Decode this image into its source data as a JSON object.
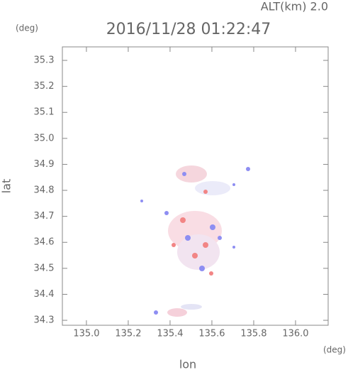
{
  "chart_data": {
    "type": "map",
    "title": "2016/11/28 01:22:47",
    "subtitle": "ALT(km) 2.0",
    "x_label": "lon",
    "y_label": "lat",
    "x_unit": "(deg)",
    "y_unit": "(deg)",
    "xlim": [
      134.885,
      136.156
    ],
    "ylim": [
      34.281,
      35.352
    ],
    "xticks": [
      {
        "value": 135,
        "label": "135.0"
      },
      135.2,
      135.4,
      135.6,
      135.8,
      {
        "value": 136,
        "label": "136.0"
      }
    ],
    "yticks": [
      34.3,
      34.4,
      34.5,
      34.6,
      34.7,
      34.8,
      34.9,
      {
        "value": 35,
        "label": "35.0"
      },
      35.1,
      35.2,
      35.3
    ]
  }
}
